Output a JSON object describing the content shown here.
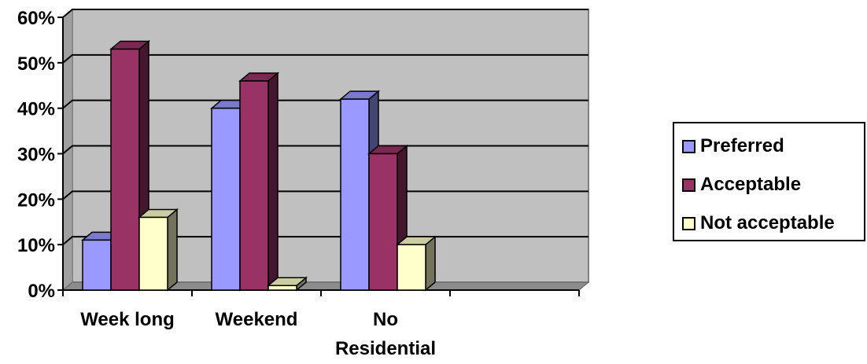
{
  "chart_data": {
    "type": "bar",
    "categories": [
      "Week long",
      "Weekend",
      "No Residential"
    ],
    "category_display": [
      [
        "Week long"
      ],
      [
        "Weekend"
      ],
      [
        "No",
        "Residential"
      ]
    ],
    "series": [
      {
        "name": "Preferred",
        "values": [
          11,
          40,
          42
        ],
        "color": "#9999ff"
      },
      {
        "name": "Acceptable",
        "values": [
          53,
          46,
          30
        ],
        "color": "#993366"
      },
      {
        "name": "Not acceptable",
        "values": [
          16,
          1,
          10
        ],
        "color": "#ffffcc"
      }
    ],
    "yticks": [
      "0%",
      "10%",
      "20%",
      "30%",
      "40%",
      "50%",
      "60%"
    ],
    "ylim": [
      0,
      60
    ],
    "unit": "%",
    "grid": true,
    "legend_position": "right",
    "plot_background": "#c0c0c0",
    "style": "3d-clustered-column"
  }
}
